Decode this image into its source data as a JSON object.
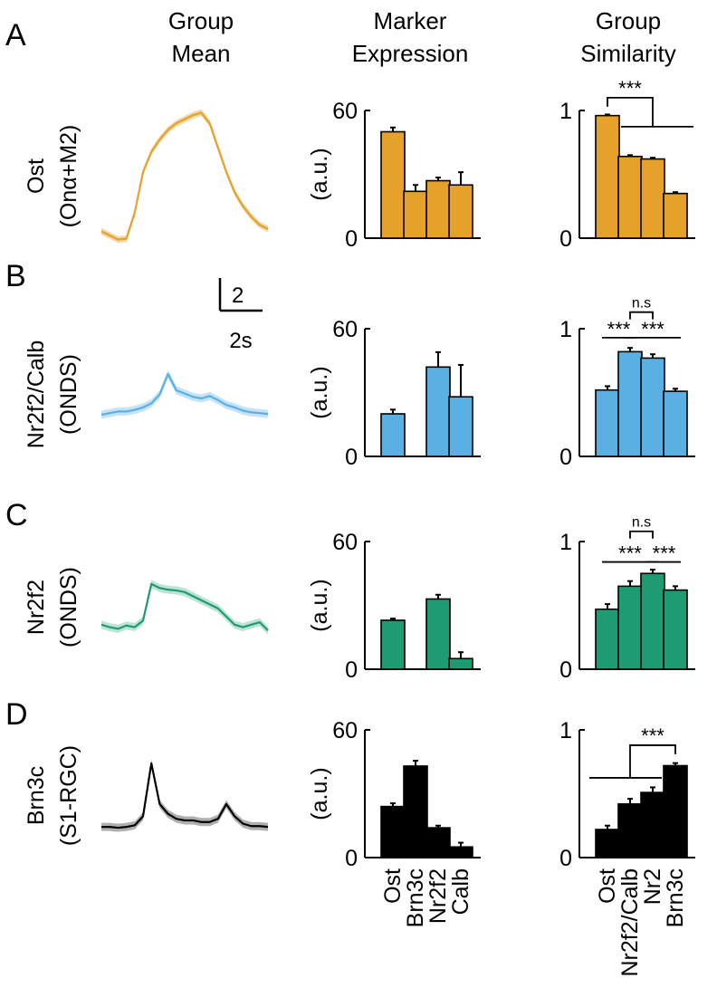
{
  "figure": {
    "column_titles": {
      "mean": [
        "Group",
        "Mean"
      ],
      "marker": [
        "Marker",
        "Expression"
      ],
      "similarity": [
        "Group",
        "Similarity"
      ]
    },
    "scalebar": {
      "y_label": "2",
      "x_label": "2s"
    },
    "units_label": "(a.u.)"
  },
  "chart_data": [
    {
      "panel": "A",
      "color": "#E5A12A",
      "band_color": "#F2D19A",
      "row_label": [
        "Ost",
        "(Onα+M2)"
      ],
      "trace": {
        "type": "line",
        "title": "Group Mean",
        "x": [
          0,
          0.05,
          0.1,
          0.15,
          0.2,
          0.25,
          0.3,
          0.35,
          0.4,
          0.45,
          0.5,
          0.55,
          0.6,
          0.65,
          0.7,
          0.75,
          0.8,
          0.85,
          0.9,
          0.95,
          1
        ],
        "y": [
          -0.3,
          -0.8,
          -1.3,
          -1.2,
          2.0,
          7.0,
          9.5,
          11.0,
          12.2,
          13.0,
          13.5,
          14.0,
          14.3,
          13.0,
          10.0,
          7.0,
          4.5,
          2.8,
          1.5,
          0.5,
          0.0
        ],
        "band": 0.4
      },
      "marker": {
        "type": "bar",
        "title": "Marker Expression",
        "categories": [
          "Ost",
          "Brn3c",
          "Nr2f2",
          "Calb"
        ],
        "values": [
          50,
          22,
          27,
          25
        ],
        "errors": [
          2,
          3,
          1.5,
          6
        ],
        "ylabel": "(a.u.)",
        "ylim": [
          0,
          60
        ],
        "yticks": [
          "0",
          "60"
        ]
      },
      "similarity": {
        "type": "bar",
        "title": "Group Similarity",
        "categories": [
          "Ost",
          "Nr2f2/Calb",
          "Nr2",
          "Brn3c"
        ],
        "values": [
          0.96,
          0.64,
          0.62,
          0.35
        ],
        "errors": [
          0.008,
          0.01,
          0.01,
          0.01
        ],
        "ylim": [
          0,
          1
        ],
        "yticks": [
          "0",
          "1"
        ],
        "annotations": [
          {
            "label": "***",
            "kind": "bracket-group",
            "from": 0,
            "group": [
              1,
              3
            ],
            "level": 1.1
          }
        ]
      }
    },
    {
      "panel": "B",
      "color": "#5AAFE3",
      "band_color": "#BFE0F5",
      "row_label": [
        "Nr2f2/Calb",
        "(ONDS)"
      ],
      "trace": {
        "type": "line",
        "title": "Group Mean",
        "x": [
          0,
          0.05,
          0.1,
          0.15,
          0.2,
          0.25,
          0.3,
          0.35,
          0.4,
          0.45,
          0.5,
          0.55,
          0.6,
          0.65,
          0.7,
          0.75,
          0.8,
          0.85,
          0.9,
          0.95,
          1
        ],
        "y": [
          0,
          0.2,
          0.4,
          0.4,
          0.6,
          0.9,
          1.4,
          2.5,
          5.0,
          3.0,
          2.6,
          2.2,
          2.0,
          2.3,
          1.8,
          1.2,
          0.9,
          0.5,
          0.3,
          0.2,
          0.1
        ],
        "band": 0.5
      },
      "marker": {
        "type": "bar",
        "title": "Marker Expression",
        "categories": [
          "Ost",
          "Brn3c",
          "Nr2f2",
          "Calb"
        ],
        "values": [
          20,
          0,
          42,
          28
        ],
        "errors": [
          2,
          0,
          7,
          15
        ],
        "ylabel": "(a.u.)",
        "ylim": [
          0,
          60
        ],
        "yticks": [
          "0",
          "60"
        ]
      },
      "similarity": {
        "type": "bar",
        "title": "Group Similarity",
        "categories": [
          "Ost",
          "Nr2f2/Calb",
          "Nr2",
          "Brn3c"
        ],
        "values": [
          0.52,
          0.82,
          0.77,
          0.51
        ],
        "errors": [
          0.03,
          0.03,
          0.03,
          0.02
        ],
        "ylim": [
          0,
          1
        ],
        "yticks": [
          "0",
          "1"
        ],
        "annotations": [
          {
            "label": "n.s",
            "kind": "bracket",
            "from": 1,
            "to": 2,
            "level": 1.13
          },
          {
            "label": "***",
            "kind": "line",
            "from": 0,
            "to": 1,
            "level": 0.93
          },
          {
            "label": "***",
            "kind": "line",
            "from": 1,
            "to": 3,
            "level": 0.93
          }
        ]
      }
    },
    {
      "panel": "C",
      "color": "#1E9B72",
      "band_color": "#B5E0CF",
      "row_label": [
        "Nr2f2",
        "(ONDS)"
      ],
      "trace": {
        "type": "line",
        "title": "Group Mean",
        "x": [
          0,
          0.05,
          0.1,
          0.15,
          0.2,
          0.25,
          0.3,
          0.35,
          0.4,
          0.45,
          0.5,
          0.55,
          0.6,
          0.65,
          0.7,
          0.75,
          0.8,
          0.85,
          0.9,
          0.95,
          1
        ],
        "y": [
          1.5,
          1.2,
          1.0,
          1.4,
          1.2,
          2.0,
          6.5,
          6.0,
          5.8,
          5.7,
          5.5,
          5.0,
          4.5,
          4.0,
          3.5,
          2.5,
          1.5,
          1.2,
          1.5,
          1.8,
          0.8
        ],
        "band": 0.5
      },
      "marker": {
        "type": "bar",
        "title": "Marker Expression",
        "categories": [
          "Ost",
          "Brn3c",
          "Nr2f2",
          "Calb"
        ],
        "values": [
          23,
          0,
          33,
          5
        ],
        "errors": [
          0.8,
          0,
          2,
          3
        ],
        "ylabel": "(a.u.)",
        "ylim": [
          0,
          60
        ],
        "yticks": [
          "0",
          "60"
        ]
      },
      "similarity": {
        "type": "bar",
        "title": "Group Similarity",
        "categories": [
          "Ost",
          "Nr2f2/Calb",
          "Nr2",
          "Brn3c"
        ],
        "values": [
          0.47,
          0.65,
          0.75,
          0.62
        ],
        "errors": [
          0.04,
          0.04,
          0.03,
          0.03
        ],
        "ylim": [
          0,
          1
        ],
        "yticks": [
          "0",
          "1"
        ],
        "annotations": [
          {
            "label": "n.s",
            "kind": "bracket",
            "from": 1,
            "to": 2,
            "level": 1.08
          },
          {
            "label": "***",
            "kind": "line",
            "from": 0,
            "to": 2,
            "level": 0.84
          },
          {
            "label": "***",
            "kind": "line",
            "from": 2,
            "to": 3,
            "level": 0.84
          }
        ]
      }
    },
    {
      "panel": "D",
      "color": "#000000",
      "band_color": "#A6A6A6",
      "row_label": [
        "Brn3c",
        "(S1-RGC)"
      ],
      "trace": {
        "type": "line",
        "title": "Group Mean",
        "x": [
          0,
          0.05,
          0.1,
          0.15,
          0.2,
          0.25,
          0.3,
          0.35,
          0.4,
          0.45,
          0.5,
          0.55,
          0.6,
          0.65,
          0.7,
          0.75,
          0.8,
          0.85,
          0.9,
          0.95,
          1
        ],
        "y": [
          0.2,
          0.2,
          0.1,
          0.2,
          0.4,
          1.5,
          8.0,
          3.0,
          1.8,
          1.2,
          1.0,
          1.0,
          0.8,
          0.8,
          1.2,
          3.0,
          1.5,
          0.6,
          0.3,
          0.3,
          0.2
        ],
        "band": 0.5
      },
      "marker": {
        "type": "bar",
        "title": "Marker Expression",
        "categories": [
          "Ost",
          "Brn3c",
          "Nr2f2",
          "Calb"
        ],
        "values": [
          24,
          43,
          14,
          5
        ],
        "errors": [
          1.5,
          2.5,
          1,
          2
        ],
        "ylabel": "(a.u.)",
        "ylim": [
          0,
          60
        ],
        "yticks": [
          "0",
          "60"
        ]
      },
      "similarity": {
        "type": "bar",
        "title": "Group Similarity",
        "categories": [
          "Ost",
          "Nr2f2/Calb",
          "Nr2",
          "Brn3c"
        ],
        "values": [
          0.22,
          0.42,
          0.51,
          0.72
        ],
        "errors": [
          0.03,
          0.04,
          0.04,
          0.02
        ],
        "ylim": [
          0,
          1
        ],
        "yticks": [
          "0",
          "1"
        ],
        "annotations": [
          {
            "label": "***",
            "kind": "group-bracket",
            "to": 3,
            "group": [
              0,
              2
            ],
            "level": 0.88
          }
        ]
      }
    }
  ]
}
